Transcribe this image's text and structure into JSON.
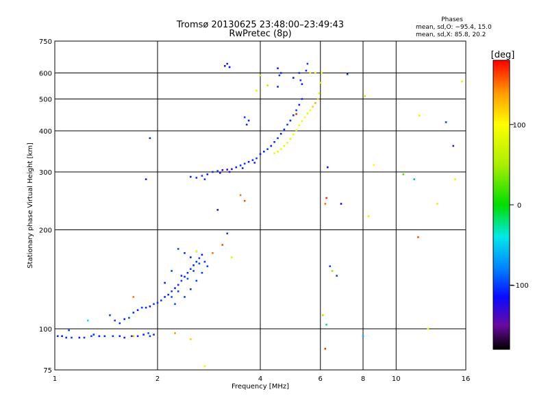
{
  "chart_data": {
    "type": "scatter",
    "title": "Tromsø 20130625 23:48:00–23:49:43",
    "subtitle": "RwPretec (8p)",
    "xlabel": "Frequency [MHz]",
    "ylabel": "Stationary phase Virtual Height [km]",
    "x_scale": "log",
    "y_scale": "log",
    "xlim": [
      1,
      16
    ],
    "ylim": [
      75,
      750
    ],
    "x_ticks": [
      1,
      2,
      4,
      6,
      8,
      10,
      16
    ],
    "x_tick_labels": [
      "1",
      "2",
      "4",
      "6",
      "8",
      "10",
      "16"
    ],
    "y_ticks": [
      75,
      100,
      200,
      300,
      400,
      500,
      600,
      750
    ],
    "y_tick_labels": [
      "75",
      "100",
      "200",
      "300",
      "400",
      "500",
      "600",
      "750"
    ],
    "grid": true,
    "stats_box": {
      "heading": "Phases",
      "line1": "mean, sd,O: −95.4, 15.0",
      "line2": "mean, sd,X:  85.8, 20.2"
    },
    "colorbar": {
      "label": "[deg]",
      "range": [
        -180,
        180
      ],
      "ticks": [
        100,
        0,
        -100
      ],
      "tick_labels": [
        "100",
        "0",
        "−100"
      ],
      "stops": [
        {
          "v": -180,
          "color": "#000000"
        },
        {
          "v": -150,
          "color": "#6a0aa0"
        },
        {
          "v": -115,
          "color": "#0a0aff"
        },
        {
          "v": -80,
          "color": "#0080ff"
        },
        {
          "v": -40,
          "color": "#00e8e8"
        },
        {
          "v": 0,
          "color": "#00dd00"
        },
        {
          "v": 50,
          "color": "#aaee00"
        },
        {
          "v": 100,
          "color": "#ffff00"
        },
        {
          "v": 140,
          "color": "#ff9900"
        },
        {
          "v": 180,
          "color": "#ff0000"
        }
      ]
    },
    "series": [
      {
        "values": [
          [
            1.02,
            95,
            -105
          ],
          [
            1.05,
            95,
            -110
          ],
          [
            1.08,
            94,
            -105
          ],
          [
            1.12,
            94,
            -100
          ],
          [
            1.18,
            94,
            -110
          ],
          [
            1.22,
            94,
            -105
          ],
          [
            1.28,
            95,
            -100
          ],
          [
            1.35,
            95,
            -110
          ],
          [
            1.4,
            95,
            -105
          ],
          [
            1.48,
            95,
            -100
          ],
          [
            1.55,
            95,
            -108
          ],
          [
            1.6,
            94,
            -110
          ],
          [
            1.68,
            95,
            -100
          ],
          [
            1.75,
            95,
            -105
          ],
          [
            1.82,
            96,
            -110
          ],
          [
            1.9,
            95,
            -100
          ],
          [
            1.95,
            96,
            -105
          ],
          [
            1.88,
            97,
            -95
          ],
          [
            1.1,
            99,
            -100
          ],
          [
            1.3,
            96,
            -105
          ]
        ]
      },
      {
        "values": [
          [
            1.6,
            107,
            -110
          ],
          [
            1.65,
            108,
            -100
          ],
          [
            1.7,
            112,
            -105
          ],
          [
            1.75,
            114,
            -110
          ],
          [
            1.8,
            116,
            -100
          ],
          [
            1.85,
            116,
            -105
          ],
          [
            1.9,
            117,
            -110
          ],
          [
            1.95,
            119,
            -100
          ],
          [
            2.0,
            120,
            -105
          ],
          [
            2.05,
            122,
            -100
          ],
          [
            2.1,
            125,
            -110
          ],
          [
            2.15,
            127,
            -105
          ],
          [
            2.2,
            130,
            -100
          ],
          [
            2.25,
            133,
            -110
          ],
          [
            2.3,
            136,
            -105
          ],
          [
            2.35,
            140,
            -100
          ],
          [
            2.4,
            144,
            -110
          ],
          [
            2.45,
            148,
            -105
          ],
          [
            2.5,
            152,
            -100
          ],
          [
            2.55,
            156,
            -110
          ],
          [
            2.6,
            160,
            -105
          ],
          [
            2.65,
            164,
            -100
          ],
          [
            2.7,
            168,
            -110
          ],
          [
            2.75,
            160,
            -105
          ],
          [
            2.8,
            155,
            -100
          ],
          [
            2.2,
            125,
            -95
          ],
          [
            2.3,
            130,
            -100
          ],
          [
            2.45,
            142,
            -95
          ],
          [
            2.55,
            150,
            -100
          ],
          [
            2.65,
            158,
            -95
          ],
          [
            2.35,
            145,
            -105
          ],
          [
            2.5,
            165,
            -110
          ],
          [
            2.6,
            140,
            -100
          ],
          [
            2.4,
            170,
            -105
          ],
          [
            2.2,
            150,
            -100
          ],
          [
            2.3,
            175,
            -95
          ],
          [
            2.1,
            138,
            -110
          ],
          [
            2.7,
            148,
            -100
          ],
          [
            2.5,
            132,
            -105
          ],
          [
            2.6,
            172,
            -110
          ],
          [
            1.45,
            110,
            -100
          ],
          [
            1.55,
            104,
            -105
          ],
          [
            1.5,
            106,
            -100
          ],
          [
            2.25,
            119,
            -95
          ],
          [
            2.4,
            125,
            -100
          ]
        ]
      },
      {
        "values": [
          [
            2.5,
            290,
            -110
          ],
          [
            2.6,
            288,
            -105
          ],
          [
            2.7,
            292,
            -100
          ],
          [
            2.8,
            295,
            -110
          ],
          [
            2.9,
            300,
            -105
          ],
          [
            3.0,
            302,
            -100
          ],
          [
            3.1,
            304,
            -130
          ],
          [
            3.2,
            305,
            -135
          ],
          [
            3.3,
            306,
            -125
          ],
          [
            3.4,
            310,
            -110
          ],
          [
            3.5,
            314,
            -105
          ],
          [
            3.6,
            318,
            -100
          ],
          [
            3.7,
            322,
            -110
          ],
          [
            3.8,
            326,
            -105
          ],
          [
            3.9,
            330,
            -100
          ],
          [
            4.0,
            340,
            -110
          ],
          [
            4.1,
            346,
            -105
          ],
          [
            4.2,
            352,
            -100
          ],
          [
            4.3,
            360,
            -110
          ],
          [
            4.4,
            370,
            -105
          ],
          [
            4.5,
            380,
            -100
          ],
          [
            4.6,
            392,
            -110
          ],
          [
            4.7,
            404,
            -105
          ],
          [
            4.8,
            418,
            -100
          ],
          [
            4.9,
            430,
            -110
          ],
          [
            5.0,
            446,
            -105
          ],
          [
            5.1,
            462,
            -100
          ],
          [
            5.2,
            480,
            -110
          ],
          [
            5.3,
            500,
            -105
          ],
          [
            2.75,
            285,
            -100
          ],
          [
            3.05,
            298,
            -130
          ],
          [
            3.25,
            300,
            -135
          ],
          [
            3.55,
            308,
            -110
          ],
          [
            3.85,
            320,
            -105
          ]
        ]
      },
      {
        "values": [
          [
            4.4,
            342,
            90
          ],
          [
            4.5,
            346,
            85
          ],
          [
            4.6,
            352,
            95
          ],
          [
            4.7,
            360,
            80
          ],
          [
            4.8,
            368,
            90
          ],
          [
            4.9,
            378,
            85
          ],
          [
            5.0,
            390,
            95
          ],
          [
            5.1,
            402,
            80
          ],
          [
            5.2,
            416,
            90
          ],
          [
            5.3,
            428,
            85
          ],
          [
            5.4,
            440,
            95
          ],
          [
            5.5,
            452,
            80
          ],
          [
            5.6,
            462,
            90
          ],
          [
            5.7,
            474,
            120
          ],
          [
            5.8,
            486,
            130
          ],
          [
            5.9,
            500,
            120
          ],
          [
            5.95,
            520,
            80
          ],
          [
            6.0,
            560,
            70
          ],
          [
            6.05,
            600,
            90
          ]
        ]
      },
      {
        "values": [
          [
            4.5,
            620,
            -110
          ],
          [
            4.6,
            600,
            -105
          ],
          [
            4.55,
            590,
            -100
          ],
          [
            4.5,
            545,
            -105
          ],
          [
            5.0,
            580,
            -110
          ],
          [
            5.2,
            600,
            -105
          ],
          [
            5.25,
            570,
            -100
          ],
          [
            5.3,
            555,
            -110
          ],
          [
            5.45,
            610,
            -105
          ],
          [
            5.5,
            640,
            -100
          ],
          [
            3.6,
            440,
            -100
          ],
          [
            3.7,
            430,
            -110
          ],
          [
            3.65,
            418,
            -105
          ],
          [
            3.15,
            630,
            -120
          ],
          [
            3.2,
            640,
            -110
          ],
          [
            3.25,
            625,
            -115
          ],
          [
            5.6,
            600,
            110
          ],
          [
            5.8,
            600,
            90
          ]
        ]
      },
      {
        "values": [
          [
            1.9,
            380,
            -105
          ],
          [
            1.85,
            285,
            -110
          ],
          [
            3.0,
            230,
            -130
          ],
          [
            3.2,
            195,
            -100
          ],
          [
            3.1,
            180,
            160
          ],
          [
            2.9,
            170,
            150
          ],
          [
            2.6,
            172,
            90
          ],
          [
            3.3,
            165,
            80
          ],
          [
            1.7,
            125,
            150
          ],
          [
            4.2,
            550,
            120
          ],
          [
            4.0,
            590,
            60
          ],
          [
            3.9,
            530,
            80
          ],
          [
            5.1,
            450,
            170
          ],
          [
            6.2,
            240,
            150
          ],
          [
            6.3,
            310,
            -110
          ],
          [
            6.25,
            250,
            170
          ],
          [
            6.4,
            155,
            -95
          ],
          [
            6.5,
            150,
            40
          ],
          [
            6.7,
            145,
            -100
          ],
          [
            6.9,
            240,
            -120
          ],
          [
            7.2,
            595,
            -105
          ],
          [
            6.1,
            110,
            50
          ],
          [
            6.2,
            87,
            170
          ],
          [
            6.25,
            103,
            -20
          ],
          [
            8.0,
            95,
            -60
          ],
          [
            8.1,
            510,
            60
          ],
          [
            8.3,
            220,
            110
          ],
          [
            8.6,
            315,
            100
          ],
          [
            10.5,
            295,
            20
          ],
          [
            11.3,
            285,
            -60
          ],
          [
            11.6,
            190,
            160
          ],
          [
            11.7,
            445,
            110
          ],
          [
            12.4,
            100,
            100
          ],
          [
            13.2,
            240,
            110
          ],
          [
            14.0,
            425,
            -100
          ],
          [
            14.7,
            360,
            -140
          ],
          [
            14.9,
            285,
            90
          ],
          [
            15.6,
            565,
            80
          ],
          [
            1.25,
            106,
            -40
          ],
          [
            1.7,
            95,
            130
          ],
          [
            2.25,
            97,
            140
          ],
          [
            2.5,
            93,
            120
          ],
          [
            2.75,
            77,
            90
          ],
          [
            3.5,
            255,
            150
          ],
          [
            3.6,
            245,
            160
          ]
        ]
      }
    ]
  }
}
